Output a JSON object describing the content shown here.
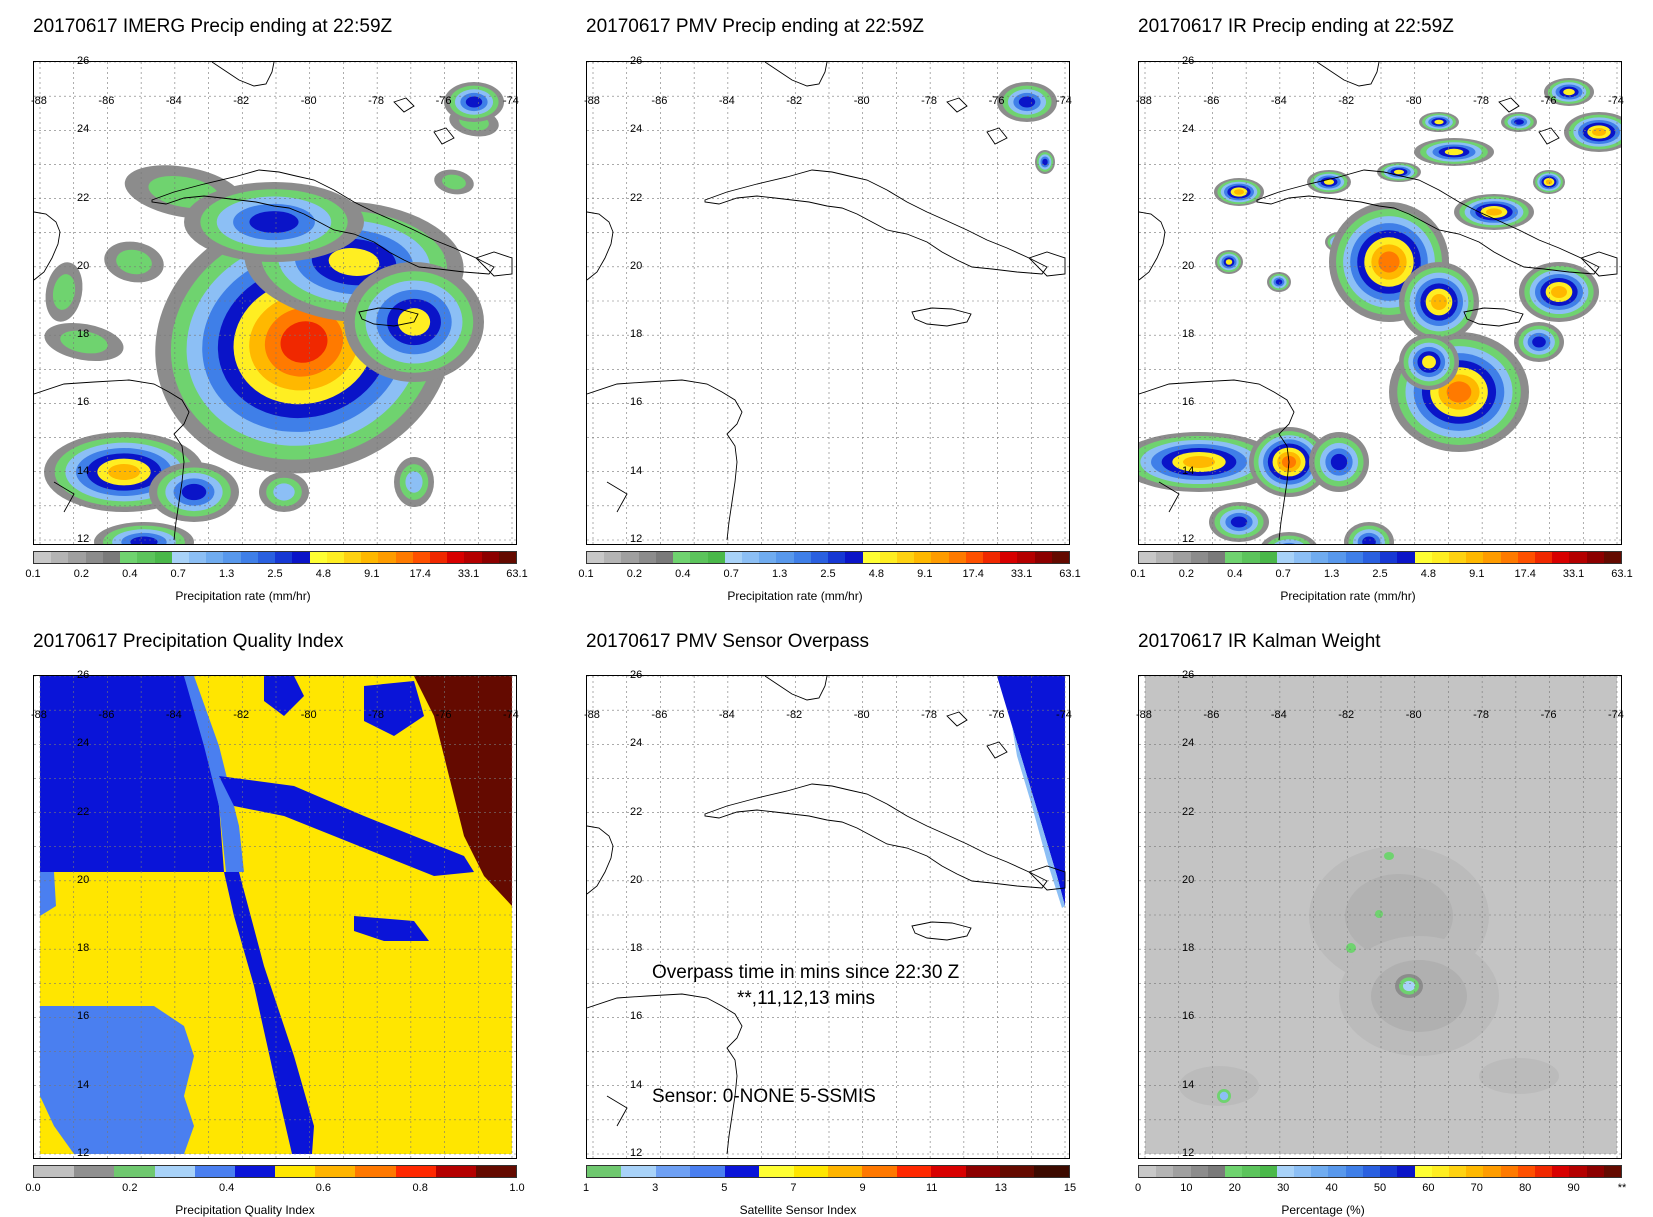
{
  "panels": [
    {
      "title": "20170617 IMERG Precip ending at 22:59Z"
    },
    {
      "title": "20170617 PMV Precip ending at 22:59Z"
    },
    {
      "title": "20170617 IR Precip ending at 22:59Z"
    },
    {
      "title": "20170617 Precipitation Quality Index"
    },
    {
      "title": "20170617 PMV Sensor Overpass"
    },
    {
      "title": "20170617 IR Kalman Weight"
    }
  ],
  "map": {
    "lon_ticks": [
      "-88",
      "-86",
      "-84",
      "-82",
      "-80",
      "-78",
      "-76",
      "-74"
    ],
    "lat_ticks": [
      "26",
      "24",
      "22",
      "20",
      "18",
      "16",
      "14",
      "12"
    ]
  },
  "colorbars": {
    "precip": {
      "title": "Precipitation rate (mm/hr)",
      "ticks": [
        "0.1",
        "0.2",
        "0.4",
        "0.7",
        "1.3",
        "2.5",
        "4.8",
        "9.1",
        "17.4",
        "33.1",
        "63.1"
      ],
      "colors": [
        "#c8c8c8",
        "#b4b4b4",
        "#a0a0a0",
        "#8c8c8c",
        "#7a7a7a",
        "#6fd36f",
        "#5cc45c",
        "#4ab84a",
        "#a8d2f8",
        "#8cbff5",
        "#70acf0",
        "#5898ec",
        "#3f7fe8",
        "#2a60e0",
        "#1638d4",
        "#0a14c8",
        "#ffff33",
        "#ffee22",
        "#ffd211",
        "#ffb800",
        "#ff9c00",
        "#ff7a00",
        "#ff5000",
        "#f02800",
        "#d80000",
        "#b40000",
        "#8c0000",
        "#640a00"
      ]
    },
    "pqi": {
      "title": "Precipitation Quality Index",
      "ticks": [
        "0.0",
        "0.2",
        "0.4",
        "0.6",
        "0.8",
        "1.0"
      ],
      "colors": [
        "#c0c0c0",
        "#909090",
        "#6fc86f",
        "#a8d2f8",
        "#4a7ff0",
        "#0a14d8",
        "#ffe600",
        "#ffb400",
        "#ff7800",
        "#ff2800",
        "#b40000",
        "#640a00"
      ]
    },
    "sensor": {
      "title": "Satellite Sensor Index",
      "ticks": [
        "1",
        "3",
        "5",
        "7",
        "9",
        "11",
        "13",
        "15"
      ],
      "colors": [
        "#6fc86f",
        "#a8d2f8",
        "#6ea0f4",
        "#4a7ff0",
        "#0a14d8",
        "#ffff33",
        "#ffe600",
        "#ffb400",
        "#ff7800",
        "#ff2800",
        "#d80000",
        "#8c0000",
        "#640a00",
        "#3c0a00"
      ]
    },
    "kalman": {
      "title": "Percentage (%)",
      "ticks": [
        "0",
        "10",
        "20",
        "30",
        "40",
        "50",
        "60",
        "70",
        "80",
        "90",
        "**"
      ],
      "colors": [
        "#c8c8c8",
        "#b4b4b4",
        "#a0a0a0",
        "#8c8c8c",
        "#7a7a7a",
        "#6fd36f",
        "#5cc45c",
        "#4ab84a",
        "#a8d2f8",
        "#8cbff5",
        "#70acf0",
        "#5898ec",
        "#3f7fe8",
        "#2a60e0",
        "#1638d4",
        "#0a14c8",
        "#ffff33",
        "#ffee22",
        "#ffd211",
        "#ffb800",
        "#ff9c00",
        "#ff7a00",
        "#ff5000",
        "#f02800",
        "#d80000",
        "#b40000",
        "#8c0000",
        "#640a00"
      ]
    }
  },
  "overpass": {
    "line1": "Overpass time in mins since 22:30 Z",
    "line2": "**,11,12,13 mins",
    "line3": "Sensor:   0-NONE  5-SSMIS"
  }
}
